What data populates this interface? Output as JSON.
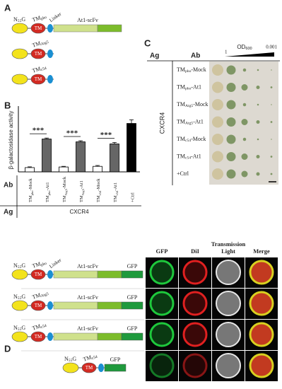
{
  "panel_a": {
    "label": "A",
    "constructs": [
      {
        "n_domain": {
          "main": "N",
          "sub": "55",
          "suffix": "G"
        },
        "tm": "TM",
        "tm_label": {
          "main": "TM",
          "sub": "pho"
        },
        "linker": "Linker",
        "scfv": "At1-scFv"
      },
      {
        "tm": "TM",
        "tm_label": {
          "main": "TM",
          "sub": "Atg5"
        }
      },
      {
        "tm": "TM",
        "tm_label": {
          "main": "TM",
          "sub": "c54"
        }
      }
    ]
  },
  "chart_data": {
    "type": "bar",
    "panel_label": "B",
    "y_label": "β-galactosidase activity",
    "categories": [
      {
        "main": "TM",
        "sub": "pho",
        "suffix": "-Mock"
      },
      {
        "main": "TM",
        "sub": "pho",
        "suffix": "-At1"
      },
      {
        "main": "TM",
        "sub": "Atg5",
        "suffix": "-Mock"
      },
      {
        "main": "TM",
        "sub": "Atg5",
        "suffix": "-At1"
      },
      {
        "main": "TM",
        "sub": "c54",
        "suffix": "-Mock"
      },
      {
        "main": "TM",
        "sub": "c54",
        "suffix": "-At1"
      },
      "+Ctrl"
    ],
    "values": [
      35,
      268,
      40,
      245,
      45,
      228,
      395
    ],
    "errors": [
      6,
      8,
      5,
      9,
      7,
      12,
      30
    ],
    "colors": [
      "#ffffff",
      "#666666",
      "#ffffff",
      "#666666",
      "#ffffff",
      "#666666",
      "#000000"
    ],
    "ylim": [
      0,
      450
    ],
    "significance": [
      "***",
      "***",
      "***"
    ],
    "ab_label": "Ab",
    "ag_label": "Ag",
    "antigen": "CXCR4"
  },
  "panel_c": {
    "label": "C",
    "ag_label": "Ag",
    "ab_label": "Ab",
    "od": {
      "main": "OD",
      "sub": "600"
    },
    "od_start": 1,
    "od_end": 0.001,
    "antigen": "CXCR4",
    "rows": [
      {
        "main": "TM",
        "sub": "pho",
        "suffix": "-Mock"
      },
      {
        "main": "TM",
        "sub": "pho",
        "suffix": "-At1"
      },
      {
        "main": "TM",
        "sub": "Atg5",
        "suffix": "-Mock"
      },
      {
        "main": "TM",
        "sub": "Atg5",
        "suffix": "-At1"
      },
      {
        "main": "TM",
        "sub": "c54",
        "suffix": "-Mock"
      },
      {
        "main": "TM",
        "sub": "c54",
        "suffix": "-At1"
      },
      "+Ctrl"
    ]
  },
  "panel_d": {
    "label": "D",
    "headers": [
      [
        "GFP"
      ],
      [
        "DiI"
      ],
      [
        "Transmission",
        "Light"
      ],
      [
        "Merge"
      ]
    ],
    "constructs": [
      {
        "n_domain": {
          "main": "N",
          "sub": "55",
          "suffix": "G"
        },
        "tm": "TM",
        "tm_label": {
          "main": "TM",
          "sub": "pho"
        },
        "linker": "Linker",
        "scfv": "At1-scFv",
        "gfp": "GFP"
      },
      {
        "n_domain": {
          "main": "N",
          "sub": "55",
          "suffix": "G"
        },
        "tm": "TM",
        "tm_label": {
          "main": "TM",
          "sub": "Atg5"
        },
        "scfv": "At1-scFv",
        "gfp": "GFP"
      },
      {
        "n_domain": {
          "main": "N",
          "sub": "55",
          "suffix": "G"
        },
        "tm": "TM",
        "tm_label": {
          "main": "TM",
          "sub": "c54"
        },
        "scfv": "At1-scFv",
        "gfp": "GFP"
      },
      {
        "n_domain": {
          "main": "N",
          "sub": "55",
          "suffix": "G"
        },
        "tm": "TM",
        "tm_label": {
          "main": "TM",
          "sub": "c54"
        },
        "gfp": "GFP"
      }
    ]
  }
}
